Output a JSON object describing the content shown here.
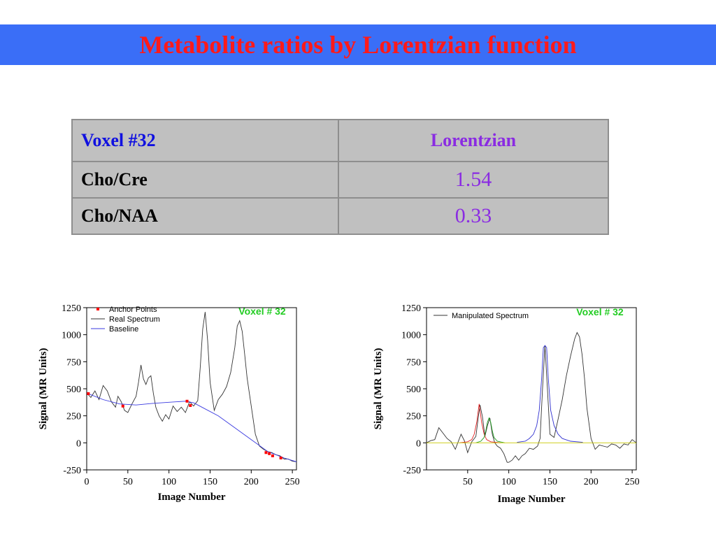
{
  "header": {
    "title": "Metabolite ratios by Lorentzian function"
  },
  "table": {
    "columns": [
      "Voxel #32",
      "Lorentzian"
    ],
    "rows": [
      {
        "label": "Cho/Cre",
        "value": "1.54"
      },
      {
        "label": "Cho/NAA",
        "value": "0.33"
      }
    ],
    "colors": {
      "voxel_header": "#1010e0",
      "method_header": "#8a2be2",
      "values": "#8a2be2"
    }
  },
  "chart_data": [
    {
      "type": "line",
      "annotation": "Voxel # 32",
      "xlabel": "Image Number",
      "ylabel": "Signal (MR Units)",
      "xlim": [
        0,
        255
      ],
      "ylim": [
        -250,
        1250
      ],
      "xticks": [
        0,
        50,
        100,
        150,
        200,
        250
      ],
      "yticks": [
        -250,
        0,
        250,
        500,
        750,
        1000,
        1250
      ],
      "legend_position": "top-left",
      "series": [
        {
          "name": "Anchor Points",
          "color": "#ff0000",
          "style": "markers",
          "x": [
            2,
            44,
            122,
            126,
            218,
            222,
            226,
            236
          ],
          "y": [
            455,
            340,
            385,
            345,
            -90,
            -100,
            -120,
            -140
          ]
        },
        {
          "name": "Real Spectrum",
          "color": "#333333",
          "style": "line",
          "x": [
            0,
            5,
            10,
            15,
            20,
            25,
            30,
            35,
            38,
            42,
            46,
            50,
            55,
            60,
            63,
            66,
            69,
            72,
            75,
            78,
            81,
            84,
            88,
            92,
            96,
            100,
            105,
            110,
            115,
            120,
            125,
            130,
            135,
            138,
            141,
            144,
            147,
            150,
            155,
            160,
            165,
            170,
            175,
            180,
            183,
            186,
            189,
            192,
            195,
            200,
            205,
            210,
            215,
            220,
            225,
            230,
            235,
            240,
            245,
            250,
            255
          ],
          "y": [
            460,
            420,
            480,
            400,
            530,
            480,
            380,
            330,
            430,
            380,
            300,
            280,
            360,
            430,
            560,
            720,
            590,
            540,
            600,
            620,
            460,
            330,
            250,
            200,
            260,
            220,
            340,
            290,
            330,
            280,
            380,
            340,
            390,
            700,
            1050,
            1210,
            950,
            560,
            300,
            400,
            450,
            520,
            650,
            880,
            1080,
            1130,
            1030,
            820,
            600,
            340,
            80,
            -30,
            -60,
            -80,
            -90,
            -110,
            -120,
            -150,
            -150,
            -170,
            -175
          ]
        },
        {
          "name": "Baseline",
          "color": "#3a3ae0",
          "style": "line",
          "x": [
            0,
            20,
            40,
            60,
            80,
            100,
            120,
            130,
            140,
            160,
            180,
            200,
            220,
            240,
            255
          ],
          "y": [
            460,
            400,
            360,
            350,
            365,
            375,
            385,
            370,
            330,
            250,
            140,
            30,
            -80,
            -140,
            -175
          ]
        }
      ]
    },
    {
      "type": "line",
      "annotation": "Voxel # 32",
      "xlabel": "Image Number",
      "ylabel": "Signal (MR Units)",
      "xlim": [
        0,
        255
      ],
      "ylim": [
        -250,
        1250
      ],
      "xticks": [
        50,
        100,
        150,
        200,
        250
      ],
      "yticks": [
        -250,
        0,
        250,
        500,
        750,
        1000,
        1250
      ],
      "legend_position": "top-left",
      "series": [
        {
          "name": "Manipulated Spectrum",
          "color": "#333333",
          "style": "line",
          "x": [
            0,
            5,
            10,
            15,
            20,
            25,
            30,
            35,
            38,
            42,
            46,
            50,
            55,
            60,
            63,
            65,
            68,
            71,
            74,
            77,
            80,
            83,
            86,
            90,
            94,
            98,
            100,
            104,
            108,
            112,
            116,
            120,
            125,
            130,
            135,
            138,
            141,
            144,
            147,
            150,
            155,
            160,
            165,
            170,
            175,
            180,
            183,
            186,
            189,
            192,
            195,
            200,
            205,
            210,
            215,
            220,
            225,
            230,
            235,
            240,
            245,
            250,
            255
          ],
          "y": [
            0,
            20,
            30,
            140,
            90,
            40,
            10,
            -60,
            0,
            80,
            20,
            -90,
            10,
            60,
            240,
            350,
            240,
            60,
            160,
            230,
            80,
            0,
            -30,
            -50,
            -100,
            -180,
            -180,
            -160,
            -120,
            -160,
            -120,
            -100,
            -50,
            -60,
            -30,
            40,
            500,
            900,
            500,
            80,
            50,
            220,
            400,
            620,
            800,
            960,
            1020,
            980,
            820,
            600,
            320,
            40,
            -60,
            -20,
            -30,
            -40,
            -10,
            -20,
            -50,
            -10,
            -20,
            30,
            0
          ]
        },
        {
          "color": "#e02020",
          "style": "line",
          "x": [
            40,
            50,
            55,
            58,
            61,
            64,
            67,
            70,
            73,
            78,
            90
          ],
          "y": [
            0,
            10,
            30,
            80,
            190,
            360,
            190,
            80,
            30,
            10,
            0
          ]
        },
        {
          "color": "#20a020",
          "style": "line",
          "x": [
            60,
            66,
            70,
            72,
            74,
            76,
            78,
            80,
            82,
            86,
            95
          ],
          "y": [
            0,
            15,
            50,
            110,
            190,
            230,
            190,
            110,
            50,
            15,
            0
          ]
        },
        {
          "color": "#3030d0",
          "style": "line",
          "x": [
            110,
            120,
            125,
            130,
            134,
            137,
            140,
            142,
            144,
            146,
            148,
            151,
            155,
            160,
            165,
            175,
            190
          ],
          "y": [
            5,
            15,
            40,
            80,
            160,
            300,
            600,
            880,
            900,
            880,
            600,
            300,
            160,
            80,
            40,
            15,
            5
          ]
        },
        {
          "color": "#c8c800",
          "style": "line",
          "x": [
            0,
            60,
            120,
            180,
            255
          ],
          "y": [
            0,
            0,
            0,
            0,
            0
          ]
        }
      ]
    }
  ]
}
